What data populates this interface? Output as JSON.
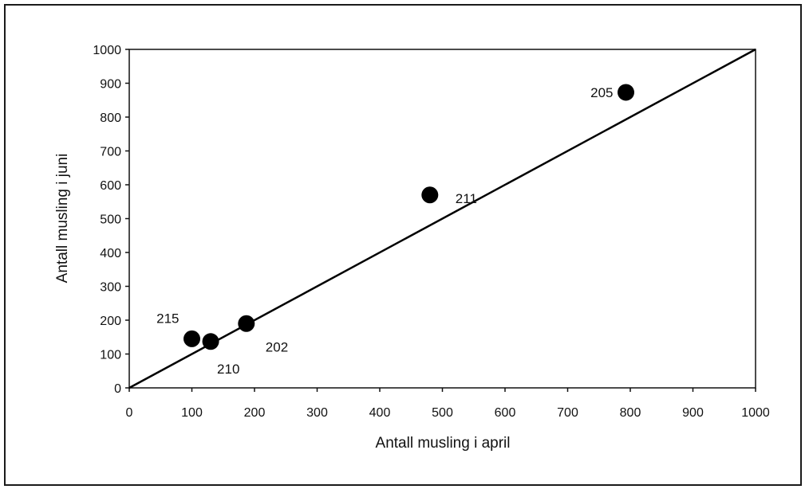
{
  "chart_data": {
    "type": "scatter",
    "xlabel": "Antall musling i april",
    "ylabel": "Antall musling i juni",
    "xlim": [
      0,
      1000
    ],
    "ylim": [
      0,
      1000
    ],
    "x_ticks": [
      "0",
      "100",
      "200",
      "300",
      "400",
      "500",
      "600",
      "700",
      "800",
      "900",
      "1000"
    ],
    "y_ticks": [
      "0",
      "100",
      "200",
      "300",
      "400",
      "500",
      "600",
      "700",
      "800",
      "900",
      "1000"
    ],
    "grid": false,
    "legend": "none",
    "points": [
      {
        "label": "215",
        "x": 100,
        "y": 145
      },
      {
        "label": "210",
        "x": 130,
        "y": 137
      },
      {
        "label": "202",
        "x": 187,
        "y": 190
      },
      {
        "label": "211",
        "x": 480,
        "y": 570
      },
      {
        "label": "205",
        "x": 793,
        "y": 873
      }
    ],
    "reference_line": {
      "from": [
        0,
        0
      ],
      "to": [
        1000,
        1000
      ]
    },
    "colors": {
      "marker": "#000000",
      "line": "#000000",
      "frame": "#1a1a1a"
    }
  }
}
